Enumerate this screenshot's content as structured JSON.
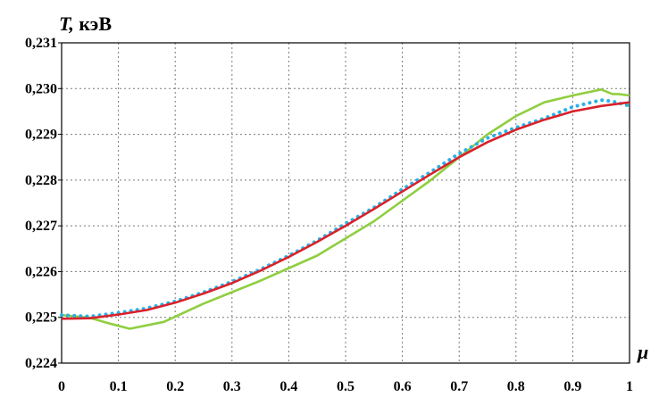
{
  "chart_data": {
    "type": "line",
    "title": "",
    "ylabel_var": "T,",
    "ylabel_unit": "кэВ",
    "xlabel": "μ",
    "xlim": [
      0,
      1
    ],
    "ylim": [
      0.224,
      0.231
    ],
    "grid": true,
    "x_ticks": [
      {
        "v": 0,
        "label": "0"
      },
      {
        "v": 0.1,
        "label": "0.1"
      },
      {
        "v": 0.2,
        "label": "0.2"
      },
      {
        "v": 0.3,
        "label": "0.3"
      },
      {
        "v": 0.4,
        "label": "0.4"
      },
      {
        "v": 0.5,
        "label": "0.5"
      },
      {
        "v": 0.6,
        "label": "0.6"
      },
      {
        "v": 0.7,
        "label": "0.7"
      },
      {
        "v": 0.8,
        "label": "0.8"
      },
      {
        "v": 0.9,
        "label": "0.9"
      },
      {
        "v": 1,
        "label": "1"
      }
    ],
    "y_ticks": [
      {
        "v": 0.224,
        "label": "0,224"
      },
      {
        "v": 0.225,
        "label": "0,225"
      },
      {
        "v": 0.226,
        "label": "0,226"
      },
      {
        "v": 0.227,
        "label": "0,227"
      },
      {
        "v": 0.228,
        "label": "0,228"
      },
      {
        "v": 0.229,
        "label": "0,229"
      },
      {
        "v": 0.23,
        "label": "0,230"
      },
      {
        "v": 0.231,
        "label": "0,231"
      }
    ],
    "series": [
      {
        "color": "#8fce3f",
        "style": "line",
        "x": [
          0,
          0.05,
          0.08,
          0.12,
          0.18,
          0.25,
          0.35,
          0.45,
          0.55,
          0.65,
          0.75,
          0.8,
          0.85,
          0.9,
          0.95,
          0.97,
          0.98,
          1
        ],
        "y": [
          0.22505,
          0.22499,
          0.22488,
          0.22475,
          0.2249,
          0.2253,
          0.2258,
          0.22635,
          0.2271,
          0.228,
          0.229,
          0.2294,
          0.2297,
          0.22985,
          0.22998,
          0.22988,
          0.22988,
          0.22985
        ]
      },
      {
        "color": "#2ab0e8",
        "style": "dotted",
        "x": [
          0,
          0.05,
          0.1,
          0.15,
          0.2,
          0.25,
          0.3,
          0.35,
          0.4,
          0.45,
          0.5,
          0.55,
          0.6,
          0.65,
          0.7,
          0.75,
          0.8,
          0.85,
          0.9,
          0.95,
          0.97,
          1
        ],
        "y": [
          0.22505,
          0.22502,
          0.2251,
          0.2252,
          0.22535,
          0.22555,
          0.22578,
          0.22605,
          0.22635,
          0.22668,
          0.22705,
          0.2274,
          0.2278,
          0.22818,
          0.22858,
          0.22892,
          0.22915,
          0.22935,
          0.2296,
          0.22975,
          0.22972,
          0.22962
        ]
      },
      {
        "color": "#d9212a",
        "style": "line",
        "x": [
          0,
          0.05,
          0.1,
          0.15,
          0.2,
          0.25,
          0.3,
          0.35,
          0.4,
          0.45,
          0.5,
          0.55,
          0.6,
          0.65,
          0.7,
          0.75,
          0.8,
          0.85,
          0.9,
          0.95,
          1
        ],
        "y": [
          0.22497,
          0.22498,
          0.22506,
          0.22516,
          0.22532,
          0.22552,
          0.22575,
          0.22602,
          0.22632,
          0.22665,
          0.227,
          0.22737,
          0.22775,
          0.22813,
          0.2285,
          0.22883,
          0.2291,
          0.22932,
          0.2295,
          0.22962,
          0.2297
        ]
      }
    ]
  }
}
